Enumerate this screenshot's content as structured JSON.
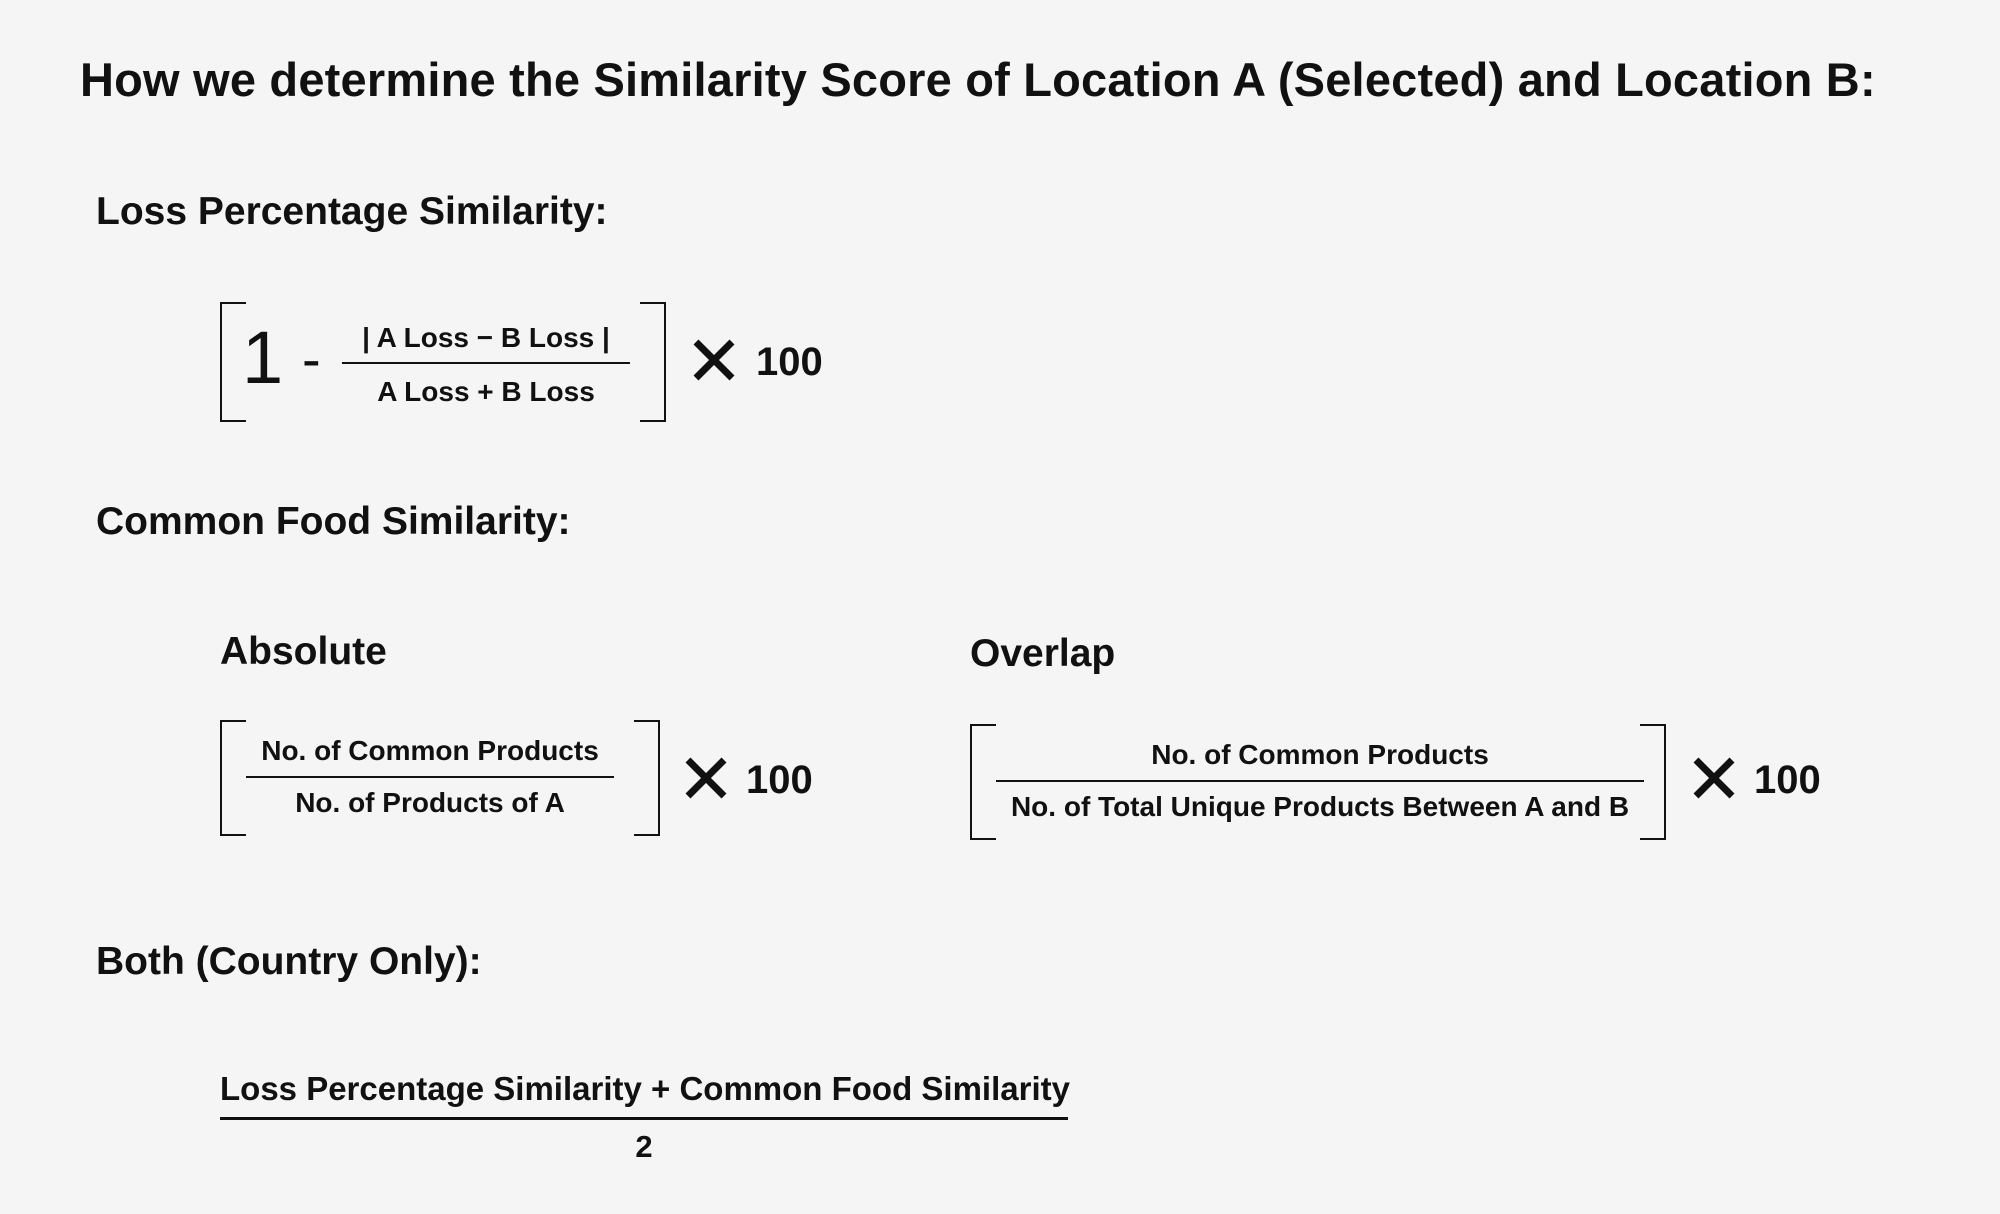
{
  "title": "How we determine the Similarity Score of Location A (Selected) and Location B:",
  "loss_section": {
    "heading": "Loss Percentage Similarity:",
    "one": "1",
    "minus": "-",
    "numerator": "| A Loss − B Loss |",
    "denominator": "A Loss + B Loss",
    "multiplier": "100"
  },
  "food_section": {
    "heading": "Common Food Similarity:",
    "absolute": {
      "label": "Absolute",
      "numerator": "No. of Common Products",
      "denominator": "No. of Products of A",
      "multiplier": "100"
    },
    "overlap": {
      "label": "Overlap",
      "numerator": "No. of Common Products",
      "denominator": "No. of Total Unique Products Between A and B",
      "multiplier": "100"
    }
  },
  "both_section": {
    "heading": "Both (Country Only):",
    "numerator": "Loss Percentage Similarity + Common Food Similarity",
    "denominator": "2"
  },
  "icons": {
    "times": "times-icon"
  }
}
